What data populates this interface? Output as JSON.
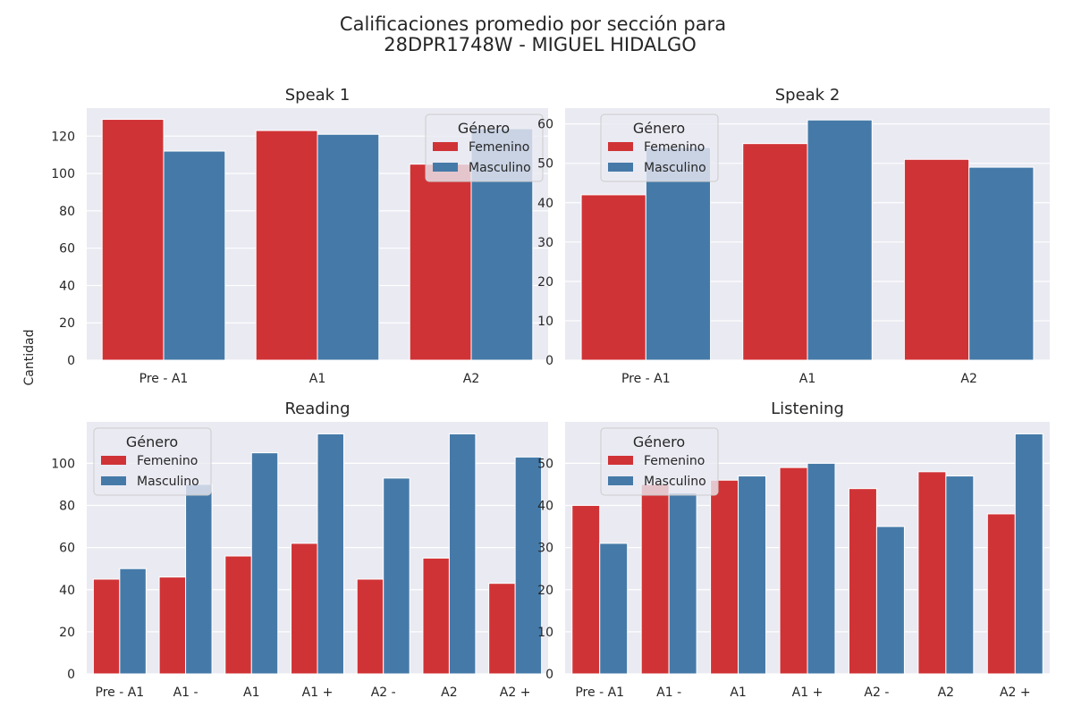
{
  "figure": {
    "title_line1": "Calificaciones promedio por sección para",
    "title_line2": "28DPR1748W - MIGUEL HIDALGO",
    "ylabel": "Cantidad"
  },
  "colors": {
    "Femenino": "#d03336",
    "Masculino": "#457aa8",
    "panel_bg": "#eaeaf2",
    "grid": "#ffffff"
  },
  "legend": {
    "title": "Género",
    "entries": [
      "Femenino",
      "Masculino"
    ]
  },
  "chart_data": [
    {
      "type": "bar",
      "title": "Speak 1",
      "categories": [
        "Pre - A1",
        "A1",
        "A2"
      ],
      "series": [
        {
          "name": "Femenino",
          "values": [
            129,
            123,
            105
          ]
        },
        {
          "name": "Masculino",
          "values": [
            112,
            121,
            124
          ]
        }
      ],
      "ylim": [
        0,
        135
      ],
      "yticks": [
        0,
        20,
        40,
        60,
        80,
        100,
        120
      ],
      "legend_position": "top-right",
      "grid": true
    },
    {
      "type": "bar",
      "title": "Speak 2",
      "categories": [
        "Pre - A1",
        "A1",
        "A2"
      ],
      "series": [
        {
          "name": "Femenino",
          "values": [
            42,
            55,
            51
          ]
        },
        {
          "name": "Masculino",
          "values": [
            54,
            61,
            49
          ]
        }
      ],
      "ylim": [
        0,
        64
      ],
      "yticks": [
        0,
        10,
        20,
        30,
        40,
        50,
        60
      ],
      "legend_position": "top-left",
      "grid": true
    },
    {
      "type": "bar",
      "title": "Reading",
      "categories": [
        "Pre - A1",
        "A1 -",
        "A1",
        "A1 +",
        "A2 -",
        "A2",
        "A2 +"
      ],
      "series": [
        {
          "name": "Femenino",
          "values": [
            45,
            46,
            56,
            62,
            45,
            55,
            43
          ]
        },
        {
          "name": "Masculino",
          "values": [
            50,
            90,
            105,
            114,
            93,
            114,
            103
          ]
        }
      ],
      "ylim": [
        0,
        119.7
      ],
      "yticks": [
        0,
        20,
        40,
        60,
        80,
        100
      ],
      "legend_position": "top-left",
      "grid": true
    },
    {
      "type": "bar",
      "title": "Listening",
      "categories": [
        "Pre - A1",
        "A1 -",
        "A1",
        "A1 +",
        "A2 -",
        "A2",
        "A2 +"
      ],
      "series": [
        {
          "name": "Femenino",
          "values": [
            40,
            45,
            46,
            49,
            44,
            48,
            38
          ]
        },
        {
          "name": "Masculino",
          "values": [
            31,
            43,
            47,
            50,
            35,
            47,
            57
          ]
        }
      ],
      "ylim": [
        0,
        59.85
      ],
      "yticks": [
        0,
        10,
        20,
        30,
        40,
        50
      ],
      "legend_position": "top-left",
      "grid": true
    }
  ]
}
